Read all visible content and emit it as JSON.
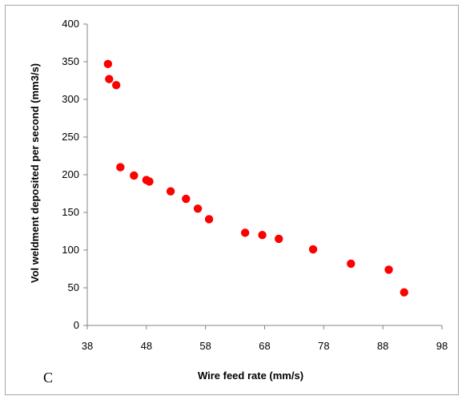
{
  "chart_data": {
    "type": "scatter",
    "panel_label": "C",
    "xlabel": "Wire feed rate (mm/s)",
    "ylabel": "Vol weldment deposited per second (mm3/s)",
    "xlim": [
      38,
      98
    ],
    "ylim": [
      0,
      400
    ],
    "x_ticks": [
      "38",
      "48",
      "58",
      "68",
      "78",
      "88",
      "98"
    ],
    "y_ticks": [
      "0",
      "50",
      "100",
      "150",
      "200",
      "250",
      "300",
      "350",
      "400"
    ],
    "grid": false,
    "legend": "none",
    "marker_color": "#ff0000",
    "points": [
      {
        "x": 41.5,
        "y": 347
      },
      {
        "x": 41.7,
        "y": 327
      },
      {
        "x": 42.9,
        "y": 319
      },
      {
        "x": 43.6,
        "y": 210
      },
      {
        "x": 45.9,
        "y": 199
      },
      {
        "x": 48.0,
        "y": 193
      },
      {
        "x": 48.5,
        "y": 191
      },
      {
        "x": 52.1,
        "y": 178
      },
      {
        "x": 54.7,
        "y": 168
      },
      {
        "x": 56.7,
        "y": 155
      },
      {
        "x": 58.6,
        "y": 141
      },
      {
        "x": 64.7,
        "y": 123
      },
      {
        "x": 67.6,
        "y": 120
      },
      {
        "x": 70.4,
        "y": 115
      },
      {
        "x": 76.2,
        "y": 101
      },
      {
        "x": 82.6,
        "y": 82
      },
      {
        "x": 89.0,
        "y": 74
      },
      {
        "x": 91.6,
        "y": 44
      }
    ]
  }
}
